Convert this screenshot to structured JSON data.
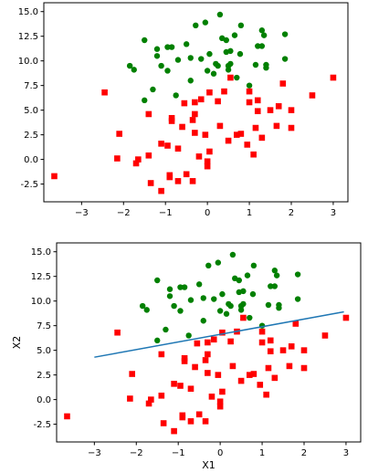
{
  "colors": {
    "class0": "#ff0000",
    "class1": "#008000",
    "boundary": "#1f77b4"
  },
  "chart_data": [
    {
      "type": "scatter",
      "title": "",
      "xlabel": "",
      "ylabel": "",
      "xlim": [
        -3.9,
        3.35
      ],
      "ylim": [
        -4.3,
        15.9
      ],
      "xticks": [
        -3,
        -2,
        -1,
        0,
        1,
        2,
        3
      ],
      "yticks": [
        -2.5,
        0.0,
        2.5,
        5.0,
        7.5,
        10.0,
        12.5,
        15.0
      ],
      "grid": false,
      "series": [
        {
          "marker": "circle",
          "color": "#008000",
          "points": [
            [
              -0.28,
              13.6
            ],
            [
              -0.05,
              13.9
            ],
            [
              0.3,
              14.7
            ],
            [
              0.8,
              13.6
            ],
            [
              1.3,
              13.1
            ],
            [
              1.35,
              12.6
            ],
            [
              1.85,
              12.7
            ],
            [
              -1.5,
              12.1
            ],
            [
              -0.95,
              11.4
            ],
            [
              -0.5,
              11.7
            ],
            [
              0.35,
              12.3
            ],
            [
              0.45,
              12.1
            ],
            [
              0.65,
              12.6
            ],
            [
              -1.2,
              11.2
            ],
            [
              -0.85,
              11.4
            ],
            [
              -1.2,
              10.5
            ],
            [
              -0.15,
              10.2
            ],
            [
              0.05,
              10.7
            ],
            [
              0.45,
              10.9
            ],
            [
              0.55,
              11.0
            ],
            [
              0.78,
              10.7
            ],
            [
              1.2,
              11.5
            ],
            [
              1.3,
              11.5
            ],
            [
              1.85,
              10.2
            ],
            [
              -1.85,
              9.5
            ],
            [
              -1.75,
              9.1
            ],
            [
              -0.7,
              10.1
            ],
            [
              -0.4,
              10.3
            ],
            [
              0.2,
              9.7
            ],
            [
              0.25,
              9.5
            ],
            [
              0.5,
              9.5
            ],
            [
              0.55,
              9.7
            ],
            [
              1.15,
              9.6
            ],
            [
              1.4,
              9.6
            ],
            [
              1.4,
              9.3
            ],
            [
              -1.1,
              9.5
            ],
            [
              -0.95,
              9.0
            ],
            [
              0.0,
              9.0
            ],
            [
              0.15,
              8.7
            ],
            [
              0.5,
              9.1
            ],
            [
              0.7,
              8.3
            ],
            [
              -0.4,
              8.0
            ],
            [
              -1.3,
              7.1
            ],
            [
              -0.75,
              6.5
            ],
            [
              1.0,
              7.5
            ],
            [
              -1.5,
              6.0
            ]
          ]
        },
        {
          "marker": "square",
          "color": "#ff0000",
          "points": [
            [
              3.0,
              8.3
            ],
            [
              2.5,
              6.5
            ],
            [
              1.8,
              7.7
            ],
            [
              2.0,
              5.0
            ],
            [
              1.7,
              5.4
            ],
            [
              1.5,
              5.0
            ],
            [
              1.2,
              6.0
            ],
            [
              1.2,
              4.9
            ],
            [
              1.0,
              6.9
            ],
            [
              1.0,
              5.8
            ],
            [
              0.4,
              6.9
            ],
            [
              0.55,
              8.3
            ],
            [
              0.05,
              6.8
            ],
            [
              0.25,
              5.9
            ],
            [
              -0.15,
              6.1
            ],
            [
              -0.3,
              5.8
            ],
            [
              -0.55,
              5.7
            ],
            [
              -2.45,
              6.8
            ],
            [
              -1.4,
              4.6
            ],
            [
              -0.85,
              3.9
            ],
            [
              -0.85,
              4.2
            ],
            [
              -0.35,
              4.0
            ],
            [
              -0.3,
              4.6
            ],
            [
              -0.6,
              3.3
            ],
            [
              -0.3,
              2.7
            ],
            [
              -0.05,
              2.5
            ],
            [
              0.3,
              3.4
            ],
            [
              0.5,
              1.9
            ],
            [
              0.7,
              2.5
            ],
            [
              0.8,
              2.6
            ],
            [
              0.95,
              1.5
            ],
            [
              1.15,
              3.2
            ],
            [
              1.3,
              2.2
            ],
            [
              1.65,
              3.4
            ],
            [
              2.0,
              3.2
            ],
            [
              1.1,
              0.5
            ],
            [
              -2.1,
              2.6
            ],
            [
              -1.1,
              1.6
            ],
            [
              -0.95,
              1.4
            ],
            [
              -0.7,
              1.1
            ],
            [
              -0.2,
              0.3
            ],
            [
              0.05,
              0.8
            ],
            [
              -1.4,
              0.4
            ],
            [
              -2.15,
              0.1
            ],
            [
              -1.65,
              0.0
            ],
            [
              -1.7,
              -0.4
            ],
            [
              0.0,
              -0.2
            ],
            [
              0.0,
              -0.7
            ],
            [
              -1.35,
              -2.4
            ],
            [
              -0.9,
              -1.6
            ],
            [
              -0.9,
              -1.8
            ],
            [
              -0.5,
              -1.5
            ],
            [
              -0.35,
              -2.2
            ],
            [
              -0.7,
              -2.2
            ],
            [
              -1.1,
              -3.2
            ],
            [
              -3.65,
              -1.7
            ]
          ]
        }
      ]
    },
    {
      "type": "scatter",
      "title": "",
      "xlabel": "X1",
      "ylabel": "X2",
      "xlim": [
        -3.9,
        3.35
      ],
      "ylim": [
        -4.3,
        15.9
      ],
      "xticks": [
        -3,
        -2,
        -1,
        0,
        1,
        2,
        3
      ],
      "yticks": [
        -2.5,
        0.0,
        2.5,
        5.0,
        7.5,
        10.0,
        12.5,
        15.0
      ],
      "grid": false,
      "line": {
        "color": "#1f77b4",
        "points": [
          [
            -3.0,
            4.3
          ],
          [
            2.95,
            8.9
          ]
        ]
      },
      "series": [
        {
          "marker": "circle",
          "color": "#008000",
          "points": [
            [
              -0.28,
              13.6
            ],
            [
              -0.05,
              13.9
            ],
            [
              0.3,
              14.7
            ],
            [
              0.8,
              13.6
            ],
            [
              1.3,
              13.1
            ],
            [
              1.35,
              12.6
            ],
            [
              1.85,
              12.7
            ],
            [
              -1.5,
              12.1
            ],
            [
              -0.95,
              11.4
            ],
            [
              -0.5,
              11.7
            ],
            [
              0.35,
              12.3
            ],
            [
              0.45,
              12.1
            ],
            [
              0.65,
              12.6
            ],
            [
              -1.2,
              11.2
            ],
            [
              -0.85,
              11.4
            ],
            [
              -1.2,
              10.5
            ],
            [
              -0.15,
              10.2
            ],
            [
              0.05,
              10.7
            ],
            [
              0.45,
              10.9
            ],
            [
              0.55,
              11.0
            ],
            [
              0.78,
              10.7
            ],
            [
              1.2,
              11.5
            ],
            [
              1.3,
              11.5
            ],
            [
              1.85,
              10.2
            ],
            [
              -1.85,
              9.5
            ],
            [
              -1.75,
              9.1
            ],
            [
              -0.7,
              10.1
            ],
            [
              -0.4,
              10.3
            ],
            [
              0.2,
              9.7
            ],
            [
              0.25,
              9.5
            ],
            [
              0.5,
              9.5
            ],
            [
              0.55,
              9.7
            ],
            [
              1.15,
              9.6
            ],
            [
              1.4,
              9.6
            ],
            [
              1.4,
              9.3
            ],
            [
              -1.1,
              9.5
            ],
            [
              -0.95,
              9.0
            ],
            [
              0.0,
              9.0
            ],
            [
              0.15,
              8.7
            ],
            [
              0.5,
              9.1
            ],
            [
              0.7,
              8.3
            ],
            [
              -0.4,
              8.0
            ],
            [
              -1.3,
              7.1
            ],
            [
              -0.75,
              6.5
            ],
            [
              1.0,
              7.5
            ],
            [
              -1.5,
              6.0
            ]
          ]
        },
        {
          "marker": "square",
          "color": "#ff0000",
          "points": [
            [
              3.0,
              8.3
            ],
            [
              2.5,
              6.5
            ],
            [
              1.8,
              7.7
            ],
            [
              2.0,
              5.0
            ],
            [
              1.7,
              5.4
            ],
            [
              1.5,
              5.0
            ],
            [
              1.2,
              6.0
            ],
            [
              1.2,
              4.9
            ],
            [
              1.0,
              6.9
            ],
            [
              1.0,
              5.8
            ],
            [
              0.4,
              6.9
            ],
            [
              0.55,
              8.3
            ],
            [
              0.05,
              6.8
            ],
            [
              0.25,
              5.9
            ],
            [
              -0.15,
              6.1
            ],
            [
              -0.3,
              5.8
            ],
            [
              -0.55,
              5.7
            ],
            [
              -2.45,
              6.8
            ],
            [
              -1.4,
              4.6
            ],
            [
              -0.85,
              3.9
            ],
            [
              -0.85,
              4.2
            ],
            [
              -0.35,
              4.0
            ],
            [
              -0.3,
              4.6
            ],
            [
              -0.6,
              3.3
            ],
            [
              -0.3,
              2.7
            ],
            [
              -0.05,
              2.5
            ],
            [
              0.3,
              3.4
            ],
            [
              0.5,
              1.9
            ],
            [
              0.7,
              2.5
            ],
            [
              0.8,
              2.6
            ],
            [
              0.95,
              1.5
            ],
            [
              1.15,
              3.2
            ],
            [
              1.3,
              2.2
            ],
            [
              1.65,
              3.4
            ],
            [
              2.0,
              3.2
            ],
            [
              1.1,
              0.5
            ],
            [
              -2.1,
              2.6
            ],
            [
              -1.1,
              1.6
            ],
            [
              -0.95,
              1.4
            ],
            [
              -0.7,
              1.1
            ],
            [
              -0.2,
              0.3
            ],
            [
              0.05,
              0.8
            ],
            [
              -1.4,
              0.4
            ],
            [
              -2.15,
              0.1
            ],
            [
              -1.65,
              0.0
            ],
            [
              -1.7,
              -0.4
            ],
            [
              0.0,
              -0.2
            ],
            [
              0.0,
              -0.7
            ],
            [
              -1.35,
              -2.4
            ],
            [
              -0.9,
              -1.6
            ],
            [
              -0.9,
              -1.8
            ],
            [
              -0.5,
              -1.5
            ],
            [
              -0.35,
              -2.2
            ],
            [
              -0.7,
              -2.2
            ],
            [
              -1.1,
              -3.2
            ],
            [
              -3.65,
              -1.7
            ]
          ]
        }
      ]
    }
  ]
}
